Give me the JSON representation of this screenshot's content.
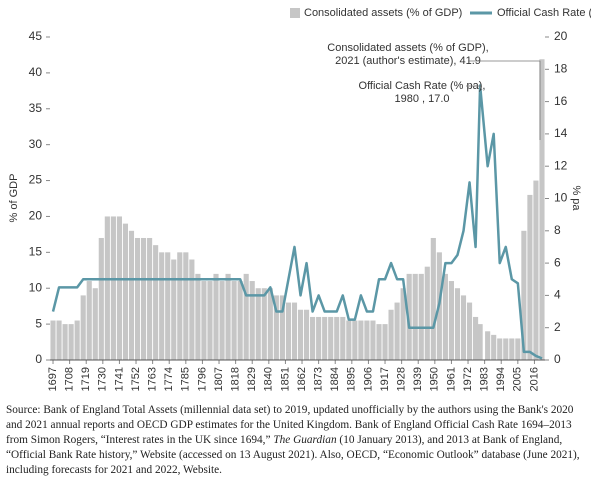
{
  "chart_data": {
    "type": "bar-line",
    "legend": "top-right",
    "ylabel": "% of GDP",
    "y2label": "% pa",
    "x": [
      1697,
      1701,
      1705,
      1709,
      1713,
      1717,
      1721,
      1725,
      1729,
      1733,
      1737,
      1741,
      1745,
      1749,
      1753,
      1757,
      1761,
      1765,
      1769,
      1773,
      1777,
      1781,
      1785,
      1789,
      1793,
      1797,
      1801,
      1805,
      1809,
      1813,
      1817,
      1821,
      1825,
      1829,
      1833,
      1837,
      1841,
      1845,
      1849,
      1853,
      1857,
      1861,
      1865,
      1869,
      1873,
      1877,
      1881,
      1885,
      1889,
      1893,
      1897,
      1901,
      1905,
      1909,
      1913,
      1917,
      1921,
      1925,
      1929,
      1933,
      1937,
      1941,
      1945,
      1949,
      1953,
      1957,
      1961,
      1965,
      1969,
      1973,
      1977,
      1980,
      1985,
      1989,
      1993,
      1997,
      2001,
      2005,
      2009,
      2013,
      2017,
      2021
    ],
    "xlim": [
      1695,
      2023
    ],
    "xticks": [
      1697,
      1708,
      1719,
      1730,
      1741,
      1752,
      1763,
      1774,
      1785,
      1796,
      1807,
      1818,
      1829,
      1840,
      1851,
      1862,
      1873,
      1884,
      1895,
      1906,
      1917,
      1928,
      1939,
      1950,
      1961,
      1972,
      1983,
      1994,
      2005,
      2016
    ],
    "ylim": [
      0,
      45
    ],
    "yticks": [
      0,
      5,
      10,
      15,
      20,
      25,
      30,
      35,
      40,
      45
    ],
    "y2lim": [
      0,
      20
    ],
    "y2ticks": [
      0,
      2,
      4,
      6,
      8,
      10,
      12,
      14,
      16,
      18,
      20
    ],
    "series": [
      {
        "name": "Consolidated assets (% of GDP)",
        "color": "#c6c6c6",
        "kind": "bar",
        "axis": "y",
        "values": [
          5.5,
          5.5,
          5,
          5,
          5.5,
          9,
          11,
          10,
          17,
          20,
          20,
          20,
          19,
          18,
          17,
          17,
          17,
          16,
          15,
          15,
          14,
          15,
          15,
          14,
          12,
          11,
          11,
          12,
          11,
          12,
          11,
          11,
          12,
          11,
          10,
          10,
          10,
          9,
          9,
          8,
          8,
          7,
          7,
          6,
          6,
          6,
          6,
          6,
          6,
          5.5,
          5.5,
          5.5,
          5.5,
          5.5,
          5,
          5,
          7,
          8,
          10,
          12,
          12,
          12,
          13,
          17,
          15,
          12,
          11,
          10,
          9,
          8,
          6,
          5,
          4,
          3.5,
          3,
          3,
          3,
          3,
          18,
          23,
          25,
          41.9
        ]
      },
      {
        "name": "Official Cash Rate (% pa)",
        "color": "#5b97a6",
        "kind": "line",
        "axis": "y2",
        "values": [
          3,
          4.5,
          4.5,
          4.5,
          4.5,
          5,
          5,
          5,
          5,
          5,
          5,
          5,
          5,
          5,
          5,
          5,
          5,
          5,
          5,
          5,
          5,
          5,
          5,
          5,
          5,
          5,
          5,
          5,
          5,
          5,
          5,
          5,
          4,
          4,
          4,
          4,
          4.5,
          3,
          3,
          5,
          7,
          4,
          6,
          3,
          4,
          3,
          3,
          3,
          4,
          2.5,
          2.5,
          4,
          3,
          3,
          5,
          5,
          6,
          5,
          5,
          2,
          2,
          2,
          2,
          2,
          3.5,
          6,
          6,
          6.5,
          8,
          11,
          7,
          17,
          12,
          14,
          6,
          7,
          5,
          4.75,
          0.5,
          0.5,
          0.25,
          0.1
        ]
      }
    ],
    "annotations": [
      {
        "lines": [
          "Consolidated assets (% of GDP),",
          "2021 (author's estimate), 41.9"
        ]
      },
      {
        "lines": [
          "Official Cash Rate (% pa),",
          "1980 , 17.0"
        ]
      }
    ],
    "source": {
      "before": "Source: Bank of England Total Assets (millennial data set) to 2019, updated unofficially by the authors using the Bank's 2020 and 2021 annual reports and OECD GDP estimates for the United Kingdom. Bank of England Official Cash Rate 1694–2013 from Simon Rogers, “Interest rates in the UK since 1694,” ",
      "italic": "The Guardian",
      "after": " (10 January 2013), and 2013 at Bank of England, “Official Bank Rate history,” Website (accessed on 13 August 2021). Also, OECD, “Economic Outlook” database (June 2021), including forecasts for 2021 and 2022, Website."
    }
  }
}
